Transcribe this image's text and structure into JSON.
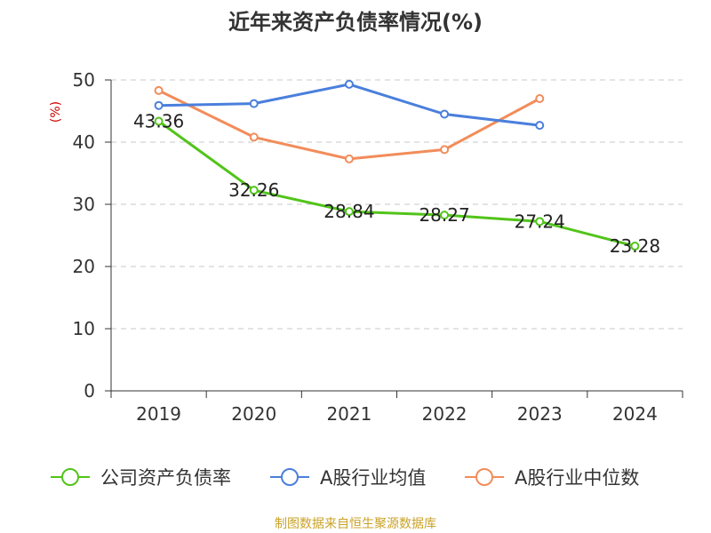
{
  "chart_data": {
    "type": "line",
    "title": "近年来资产负债率情况(%)",
    "ylabel": "(%)",
    "xlabel": "",
    "categories": [
      "2019",
      "2020",
      "2021",
      "2022",
      "2023",
      "2024"
    ],
    "ylim": [
      0,
      50
    ],
    "yticks": [
      0,
      10,
      20,
      30,
      40,
      50
    ],
    "grid": true,
    "legend_position": "bottom",
    "series": [
      {
        "name": "公司资产负债率",
        "color": "#52c41a",
        "values": [
          43.36,
          32.26,
          28.84,
          28.27,
          27.24,
          23.28
        ],
        "labels": [
          "43.36",
          "32.26",
          "28.84",
          "28.27",
          "27.24",
          "23.28"
        ]
      },
      {
        "name": "A股行业均值",
        "color": "#4a7fdc",
        "values": [
          45.9,
          46.2,
          49.3,
          44.5,
          42.7,
          null
        ]
      },
      {
        "name": "A股行业中位数",
        "color": "#f28c5a",
        "values": [
          48.3,
          40.8,
          37.3,
          38.8,
          47.0,
          null
        ]
      }
    ]
  },
  "ylabel_color": "#cc0000",
  "source": {
    "text": "制图数据来自恒生聚源数据库",
    "color": "#c9a227"
  }
}
